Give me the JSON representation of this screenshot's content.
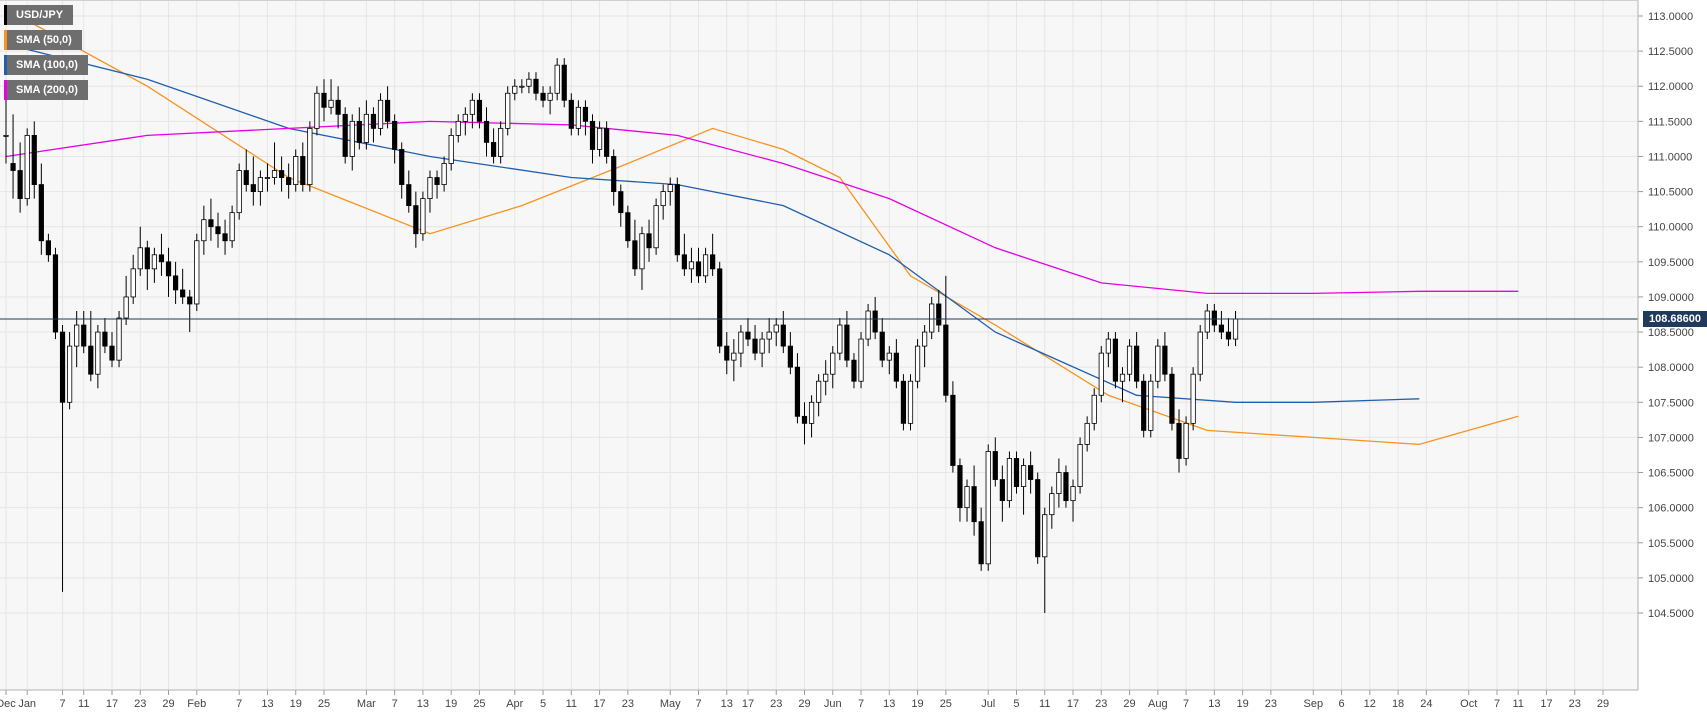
{
  "chart_data": {
    "type": "candlestick",
    "symbol": "USD/JPY",
    "current_price_label": "108.68600",
    "current_price": 108.686,
    "ylim": [
      104.25,
      113.2
    ],
    "y_ticks": [
      "113.0000",
      "112.5000",
      "112.0000",
      "111.5000",
      "111.0000",
      "110.5000",
      "110.0000",
      "109.5000",
      "109.0000",
      "108.5000",
      "108.0000",
      "107.5000",
      "107.0000",
      "106.5000",
      "106.0000",
      "105.5000",
      "105.0000",
      "104.5000"
    ],
    "y_tick_values": [
      113.0,
      112.5,
      112.0,
      111.5,
      111.0,
      110.5,
      110.0,
      109.5,
      109.0,
      108.5,
      108.0,
      107.5,
      107.0,
      106.5,
      106.0,
      105.5,
      105.0,
      104.5
    ],
    "x_tick_labels": [
      "Dec",
      "Jan",
      "7",
      "11",
      "17",
      "23",
      "29",
      "Feb",
      "7",
      "13",
      "19",
      "25",
      "Mar",
      "7",
      "13",
      "19",
      "25",
      "Apr",
      "5",
      "11",
      "17",
      "23",
      "May",
      "7",
      "13",
      "17",
      "23",
      "29",
      "Jun",
      "7",
      "13",
      "19",
      "25",
      "Jul",
      "5",
      "11",
      "17",
      "23",
      "29",
      "Aug",
      "7",
      "13",
      "19",
      "23",
      "Sep",
      "6",
      "12",
      "18",
      "24",
      "Oct",
      "7",
      "11",
      "17",
      "23",
      "29"
    ],
    "x_tick_bars": [
      0,
      3,
      8,
      11,
      15,
      19,
      23,
      27,
      33,
      37,
      41,
      45,
      51,
      55,
      59,
      63,
      67,
      72,
      76,
      80,
      84,
      88,
      94,
      98,
      102,
      105,
      109,
      113,
      117,
      121,
      125,
      129,
      133,
      139,
      143,
      147,
      151,
      155,
      159,
      163,
      167,
      171,
      175,
      179,
      185,
      189,
      193,
      197,
      201,
      207,
      211,
      214,
      218,
      222,
      226
    ],
    "grid": true,
    "legend_placement": "top-left",
    "legend": [
      {
        "name": "USD/JPY",
        "color": "#000000"
      },
      {
        "name": "SMA (50,0)",
        "color": "#f7931e"
      },
      {
        "name": "SMA (100,0)",
        "color": "#1f5fae"
      },
      {
        "name": "SMA (200,0)",
        "color": "#e600e6"
      }
    ],
    "candles": [
      [
        111.3,
        111.9,
        110.9,
        111.3
      ],
      [
        110.9,
        111.6,
        110.4,
        110.8
      ],
      [
        110.8,
        111.2,
        110.2,
        110.4
      ],
      [
        110.4,
        111.4,
        110.3,
        111.3
      ],
      [
        111.3,
        111.5,
        110.4,
        110.6
      ],
      [
        110.6,
        110.9,
        109.6,
        109.8
      ],
      [
        109.8,
        109.9,
        109.5,
        109.6
      ],
      [
        109.6,
        109.7,
        108.4,
        108.5
      ],
      [
        108.5,
        108.6,
        104.8,
        107.5
      ],
      [
        107.5,
        108.5,
        107.4,
        108.3
      ],
      [
        108.3,
        108.8,
        108.0,
        108.6
      ],
      [
        108.6,
        108.8,
        108.2,
        108.3
      ],
      [
        108.3,
        108.8,
        107.8,
        107.9
      ],
      [
        107.9,
        108.6,
        107.7,
        108.5
      ],
      [
        108.5,
        108.7,
        108.2,
        108.3
      ],
      [
        108.3,
        108.5,
        108.0,
        108.1
      ],
      [
        108.1,
        108.8,
        108.0,
        108.7
      ],
      [
        108.7,
        109.3,
        108.6,
        109.0
      ],
      [
        109.0,
        109.6,
        108.9,
        109.4
      ],
      [
        109.4,
        110.0,
        109.3,
        109.7
      ],
      [
        109.7,
        109.8,
        109.1,
        109.4
      ],
      [
        109.4,
        109.7,
        109.2,
        109.6
      ],
      [
        109.6,
        109.9,
        109.3,
        109.5
      ],
      [
        109.5,
        109.7,
        109.0,
        109.3
      ],
      [
        109.3,
        109.5,
        108.9,
        109.1
      ],
      [
        109.1,
        109.4,
        108.9,
        109.0
      ],
      [
        109.0,
        109.1,
        108.5,
        108.9
      ],
      [
        108.9,
        109.9,
        108.8,
        109.8
      ],
      [
        109.8,
        110.3,
        109.6,
        110.1
      ],
      [
        110.1,
        110.4,
        109.8,
        110.0
      ],
      [
        110.0,
        110.2,
        109.7,
        109.9
      ],
      [
        109.9,
        110.1,
        109.6,
        109.8
      ],
      [
        109.8,
        110.3,
        109.7,
        110.2
      ],
      [
        110.2,
        110.9,
        110.1,
        110.8
      ],
      [
        110.8,
        111.1,
        110.5,
        110.6
      ],
      [
        110.6,
        111.0,
        110.3,
        110.5
      ],
      [
        110.5,
        110.8,
        110.3,
        110.7
      ],
      [
        110.7,
        110.9,
        110.5,
        110.7
      ],
      [
        110.7,
        111.2,
        110.6,
        110.8
      ],
      [
        110.8,
        111.0,
        110.5,
        110.7
      ],
      [
        110.7,
        110.9,
        110.4,
        110.6
      ],
      [
        110.6,
        111.1,
        110.5,
        111.0
      ],
      [
        111.0,
        111.2,
        110.5,
        110.6
      ],
      [
        110.6,
        111.5,
        110.5,
        111.4
      ],
      [
        111.4,
        112.0,
        111.3,
        111.9
      ],
      [
        111.9,
        112.1,
        111.5,
        111.7
      ],
      [
        111.7,
        112.1,
        111.6,
        111.8
      ],
      [
        111.8,
        112.0,
        111.4,
        111.6
      ],
      [
        111.6,
        111.7,
        110.9,
        111.0
      ],
      [
        111.0,
        111.6,
        110.8,
        111.5
      ],
      [
        111.5,
        111.7,
        111.1,
        111.2
      ],
      [
        111.2,
        111.8,
        111.1,
        111.6
      ],
      [
        111.6,
        111.7,
        111.2,
        111.4
      ],
      [
        111.4,
        111.9,
        111.3,
        111.8
      ],
      [
        111.8,
        112.0,
        111.4,
        111.5
      ],
      [
        111.5,
        111.6,
        110.9,
        111.1
      ],
      [
        111.1,
        111.2,
        110.4,
        110.6
      ],
      [
        110.6,
        110.8,
        110.2,
        110.3
      ],
      [
        110.3,
        110.5,
        109.7,
        109.9
      ],
      [
        109.9,
        110.5,
        109.8,
        110.4
      ],
      [
        110.4,
        110.8,
        110.2,
        110.7
      ],
      [
        110.7,
        110.8,
        110.4,
        110.6
      ],
      [
        110.6,
        111.0,
        110.5,
        110.9
      ],
      [
        110.9,
        111.4,
        110.8,
        111.3
      ],
      [
        111.3,
        111.6,
        111.2,
        111.5
      ],
      [
        111.5,
        111.7,
        111.3,
        111.6
      ],
      [
        111.6,
        111.9,
        111.4,
        111.8
      ],
      [
        111.8,
        111.9,
        111.4,
        111.5
      ],
      [
        111.5,
        111.7,
        111.0,
        111.2
      ],
      [
        111.2,
        111.4,
        110.9,
        111.0
      ],
      [
        111.0,
        111.5,
        110.9,
        111.4
      ],
      [
        111.4,
        112.0,
        111.3,
        111.9
      ],
      [
        111.9,
        112.1,
        111.8,
        112.0
      ],
      [
        112.0,
        112.1,
        111.9,
        112.0
      ],
      [
        112.0,
        112.2,
        111.9,
        112.1
      ],
      [
        112.1,
        112.2,
        111.8,
        111.9
      ],
      [
        111.9,
        112.0,
        111.7,
        111.8
      ],
      [
        111.8,
        112.0,
        111.6,
        111.9
      ],
      [
        111.9,
        112.4,
        111.8,
        112.3
      ],
      [
        112.3,
        112.4,
        111.7,
        111.8
      ],
      [
        111.8,
        111.9,
        111.3,
        111.4
      ],
      [
        111.4,
        111.8,
        111.3,
        111.7
      ],
      [
        111.7,
        111.8,
        111.3,
        111.5
      ],
      [
        111.5,
        111.6,
        110.9,
        111.1
      ],
      [
        111.1,
        111.5,
        111.0,
        111.4
      ],
      [
        111.4,
        111.5,
        110.9,
        111.0
      ],
      [
        111.0,
        111.1,
        110.3,
        110.5
      ],
      [
        110.5,
        110.6,
        110.0,
        110.2
      ],
      [
        110.2,
        110.3,
        109.7,
        109.8
      ],
      [
        109.8,
        110.1,
        109.3,
        109.4
      ],
      [
        109.4,
        110.0,
        109.1,
        109.9
      ],
      [
        109.9,
        110.1,
        109.5,
        109.7
      ],
      [
        109.7,
        110.4,
        109.6,
        110.3
      ],
      [
        110.3,
        110.6,
        110.1,
        110.5
      ],
      [
        110.5,
        110.7,
        110.3,
        110.6
      ],
      [
        110.6,
        110.7,
        109.5,
        109.6
      ],
      [
        109.6,
        109.9,
        109.3,
        109.4
      ],
      [
        109.4,
        109.7,
        109.2,
        109.5
      ],
      [
        109.5,
        109.7,
        109.2,
        109.3
      ],
      [
        109.3,
        109.7,
        109.2,
        109.6
      ],
      [
        109.6,
        109.9,
        109.3,
        109.4
      ],
      [
        109.4,
        109.5,
        108.2,
        108.3
      ],
      [
        108.3,
        108.5,
        107.9,
        108.1
      ],
      [
        108.1,
        108.4,
        107.8,
        108.2
      ],
      [
        108.2,
        108.6,
        108.0,
        108.5
      ],
      [
        108.5,
        108.7,
        108.3,
        108.4
      ],
      [
        108.4,
        108.6,
        108.1,
        108.2
      ],
      [
        108.2,
        108.5,
        108.0,
        108.4
      ],
      [
        108.4,
        108.7,
        108.2,
        108.5
      ],
      [
        108.5,
        108.7,
        108.3,
        108.6
      ],
      [
        108.6,
        108.8,
        108.2,
        108.3
      ],
      [
        108.3,
        108.5,
        107.9,
        108.0
      ],
      [
        108.0,
        108.2,
        107.2,
        107.3
      ],
      [
        107.3,
        107.5,
        106.9,
        107.2
      ],
      [
        107.2,
        107.6,
        107.0,
        107.5
      ],
      [
        107.5,
        107.9,
        107.3,
        107.8
      ],
      [
        107.8,
        108.1,
        107.6,
        107.9
      ],
      [
        107.9,
        108.3,
        107.7,
        108.2
      ],
      [
        108.2,
        108.7,
        108.1,
        108.6
      ],
      [
        108.6,
        108.8,
        108.0,
        108.1
      ],
      [
        108.1,
        108.2,
        107.7,
        107.8
      ],
      [
        107.8,
        108.5,
        107.7,
        108.4
      ],
      [
        108.4,
        108.9,
        108.3,
        108.8
      ],
      [
        108.8,
        109.0,
        108.4,
        108.5
      ],
      [
        108.5,
        108.7,
        108.0,
        108.1
      ],
      [
        108.1,
        108.3,
        107.9,
        108.2
      ],
      [
        108.2,
        108.4,
        107.7,
        107.8
      ],
      [
        107.8,
        107.9,
        107.1,
        107.2
      ],
      [
        107.2,
        107.9,
        107.1,
        107.8
      ],
      [
        107.8,
        108.4,
        107.7,
        108.3
      ],
      [
        108.3,
        108.6,
        108.0,
        108.5
      ],
      [
        108.5,
        109.0,
        108.4,
        108.9
      ],
      [
        108.9,
        109.1,
        108.5,
        108.6
      ],
      [
        108.6,
        109.3,
        107.5,
        107.6
      ],
      [
        107.6,
        107.8,
        106.5,
        106.6
      ],
      [
        106.6,
        106.7,
        105.8,
        106.0
      ],
      [
        106.0,
        106.4,
        105.8,
        106.3
      ],
      [
        106.3,
        106.6,
        105.6,
        105.8
      ],
      [
        105.8,
        106.0,
        105.1,
        105.2
      ],
      [
        105.2,
        106.9,
        105.1,
        106.8
      ],
      [
        106.8,
        107.0,
        106.3,
        106.4
      ],
      [
        106.4,
        106.6,
        105.8,
        106.1
      ],
      [
        106.1,
        106.8,
        106.0,
        106.7
      ],
      [
        106.7,
        106.8,
        106.2,
        106.3
      ],
      [
        106.3,
        106.7,
        105.9,
        106.6
      ],
      [
        106.6,
        106.8,
        106.2,
        106.4
      ],
      [
        106.4,
        106.5,
        105.2,
        105.3
      ],
      [
        105.3,
        106.0,
        104.5,
        105.9
      ],
      [
        105.9,
        106.3,
        105.7,
        106.2
      ],
      [
        106.2,
        106.7,
        106.0,
        106.5
      ],
      [
        106.5,
        106.6,
        106.0,
        106.1
      ],
      [
        106.1,
        106.4,
        105.8,
        106.3
      ],
      [
        106.3,
        107.0,
        106.2,
        106.9
      ],
      [
        106.9,
        107.3,
        106.8,
        107.2
      ],
      [
        107.2,
        107.7,
        107.1,
        107.6
      ],
      [
        107.6,
        108.3,
        107.5,
        108.2
      ],
      [
        108.2,
        108.5,
        108.0,
        108.4
      ],
      [
        108.4,
        108.5,
        107.7,
        107.8
      ],
      [
        107.8,
        108.0,
        107.5,
        107.9
      ],
      [
        107.9,
        108.4,
        107.8,
        108.3
      ],
      [
        108.3,
        108.5,
        107.7,
        107.8
      ],
      [
        107.8,
        107.9,
        107.0,
        107.1
      ],
      [
        107.1,
        107.9,
        107.0,
        107.8
      ],
      [
        107.8,
        108.4,
        107.7,
        108.3
      ],
      [
        108.3,
        108.5,
        107.8,
        107.9
      ],
      [
        107.9,
        108.0,
        107.1,
        107.2
      ],
      [
        107.2,
        107.4,
        106.5,
        106.7
      ],
      [
        106.7,
        107.3,
        106.6,
        107.2
      ],
      [
        107.2,
        108.0,
        107.1,
        107.9
      ],
      [
        107.9,
        108.6,
        107.8,
        108.5
      ],
      [
        108.5,
        108.9,
        108.4,
        108.8
      ],
      [
        108.8,
        108.9,
        108.5,
        108.6
      ],
      [
        108.6,
        108.8,
        108.4,
        108.5
      ],
      [
        108.5,
        108.7,
        108.3,
        108.4
      ],
      [
        108.4,
        108.8,
        108.3,
        108.686
      ]
    ],
    "sma50": [
      [
        0,
        113.1
      ],
      [
        20,
        112.0
      ],
      [
        40,
        110.7
      ],
      [
        60,
        109.9
      ],
      [
        73,
        110.3
      ],
      [
        88,
        110.9
      ],
      [
        100,
        111.4
      ],
      [
        110,
        111.1
      ],
      [
        118,
        110.7
      ],
      [
        128,
        109.3
      ],
      [
        140,
        108.6
      ],
      [
        156,
        107.6
      ],
      [
        170,
        107.1
      ],
      [
        185,
        107.0
      ],
      [
        200,
        106.9
      ],
      [
        214,
        107.3
      ]
    ],
    "sma100": [
      [
        0,
        112.6
      ],
      [
        20,
        112.1
      ],
      [
        40,
        111.4
      ],
      [
        60,
        111.0
      ],
      [
        80,
        110.7
      ],
      [
        95,
        110.6
      ],
      [
        110,
        110.3
      ],
      [
        125,
        109.6
      ],
      [
        140,
        108.5
      ],
      [
        160,
        107.6
      ],
      [
        174,
        107.5
      ],
      [
        185,
        107.5
      ],
      [
        200,
        107.55
      ]
    ],
    "sma200": [
      [
        0,
        111.0
      ],
      [
        20,
        111.3
      ],
      [
        40,
        111.4
      ],
      [
        60,
        111.5
      ],
      [
        80,
        111.45
      ],
      [
        95,
        111.3
      ],
      [
        110,
        110.9
      ],
      [
        125,
        110.4
      ],
      [
        140,
        109.7
      ],
      [
        155,
        109.2
      ],
      [
        170,
        109.05
      ],
      [
        185,
        109.05
      ],
      [
        200,
        109.08
      ],
      [
        214,
        109.08
      ]
    ]
  }
}
